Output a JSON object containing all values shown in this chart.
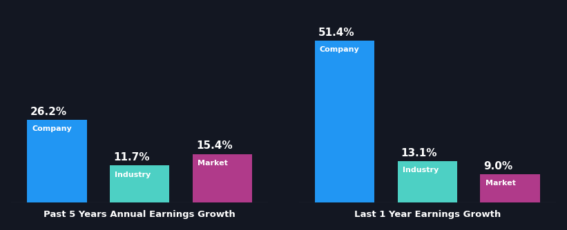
{
  "background_color": "#131722",
  "chart1": {
    "title": "Past 5 Years Annual Earnings Growth",
    "categories": [
      "Company",
      "Industry",
      "Market"
    ],
    "values": [
      26.2,
      11.7,
      15.4
    ],
    "colors": [
      "#2196f3",
      "#4dd0c4",
      "#b03a8a"
    ],
    "labels": [
      "26.2%",
      "11.7%",
      "15.4%"
    ]
  },
  "chart2": {
    "title": "Last 1 Year Earnings Growth",
    "categories": [
      "Company",
      "Industry",
      "Market"
    ],
    "values": [
      51.4,
      13.1,
      9.0
    ],
    "colors": [
      "#2196f3",
      "#4dd0c4",
      "#b03a8a"
    ],
    "labels": [
      "51.4%",
      "13.1%",
      "9.0%"
    ]
  },
  "global_max": 51.4,
  "title_fontsize": 9.5,
  "bar_label_fontsize": 11,
  "cat_label_fontsize": 8,
  "text_color": "#ffffff",
  "bar_width": 0.72,
  "bar_gap": 0.08
}
